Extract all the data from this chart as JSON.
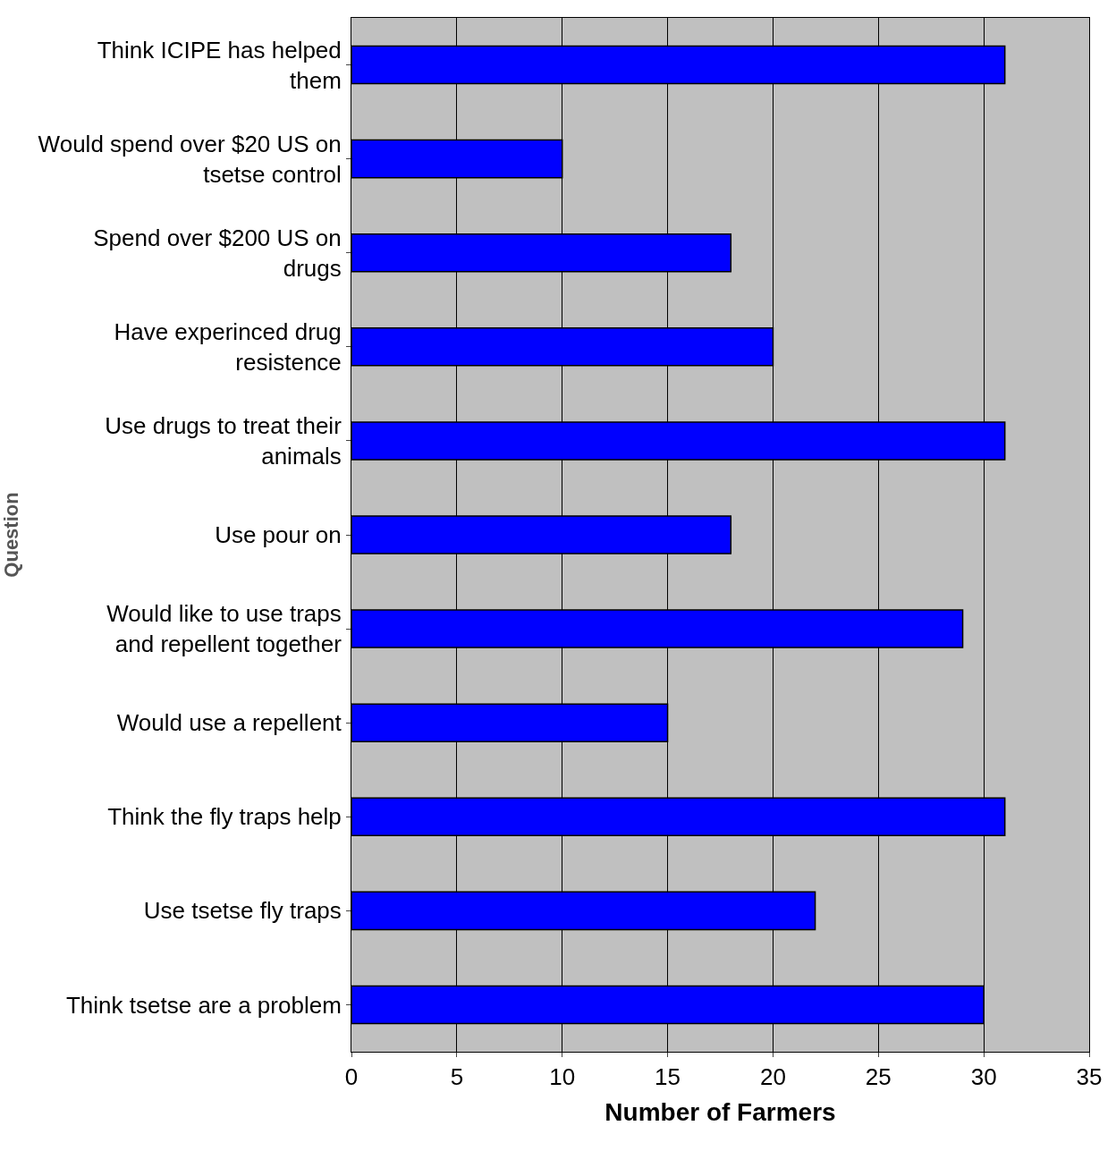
{
  "chart_data": {
    "type": "bar",
    "orientation": "horizontal",
    "xlabel": "Number of Farmers",
    "ylabel": "Question",
    "categories": [
      "Think ICIPE has helped them",
      "Would spend over $20 US on tsetse control",
      "Spend over $200 US on drugs",
      "Have experinced drug resistence",
      "Use drugs to treat their animals",
      "Use pour on",
      "Would like to use traps and repellent together",
      "Would use a repellent",
      "Think the fly traps help",
      "Use tsetse fly traps",
      "Think tsetse are a problem"
    ],
    "values": [
      31,
      10,
      18,
      20,
      31,
      18,
      29,
      15,
      31,
      22,
      30
    ],
    "color": "#0000ff",
    "xlim": [
      0,
      35
    ],
    "xticks": [
      0,
      5,
      10,
      15,
      20,
      25,
      30,
      35
    ],
    "grid": "x",
    "legend": false
  }
}
